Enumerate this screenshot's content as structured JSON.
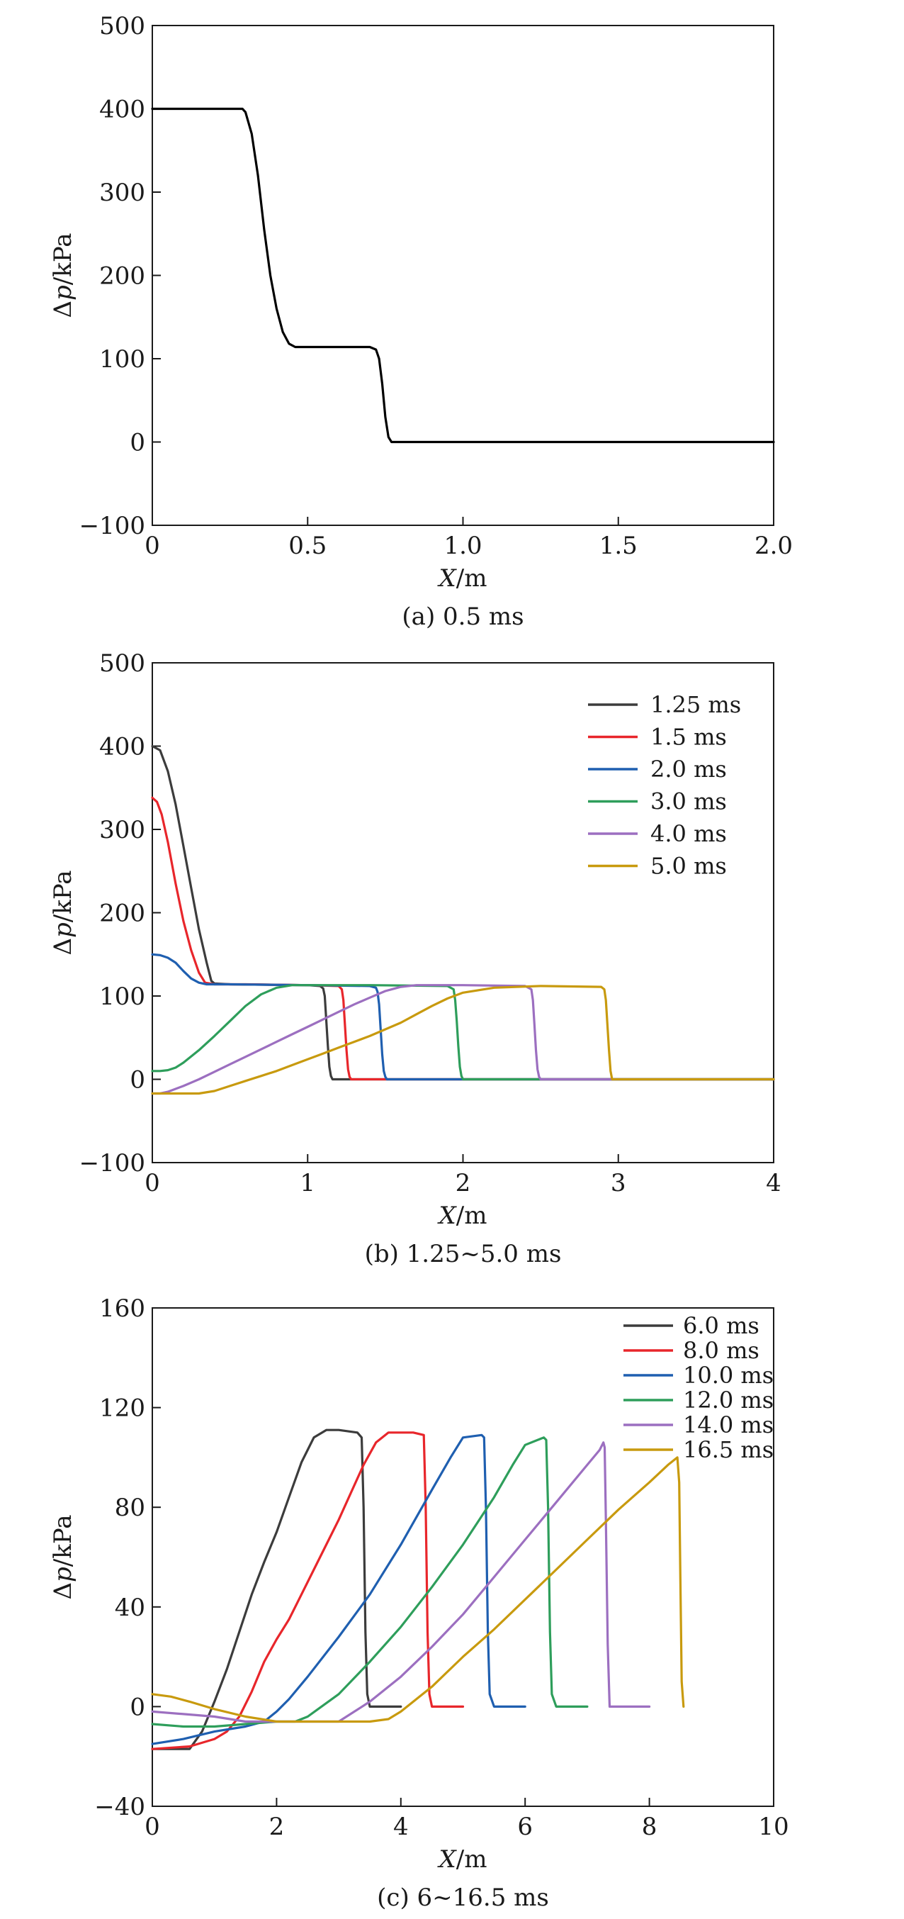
{
  "chart_data": [
    {
      "type": "line",
      "caption": "(a) 0.5 ms",
      "xlabel_italic": "X",
      "xlabel_unit": "/m",
      "ylabel_delta": "Δ",
      "ylabel_italic": "p",
      "ylabel_unit": "/kPa",
      "xlim": [
        0,
        2.0
      ],
      "ylim": [
        -100,
        500
      ],
      "xticks": [
        0,
        0.5,
        1.0,
        1.5,
        2.0
      ],
      "xtick_labels": [
        "0",
        "0.5",
        "1.0",
        "1.5",
        "2.0"
      ],
      "yticks": [
        -100,
        0,
        100,
        200,
        300,
        400,
        500
      ],
      "ytick_labels": [
        "−100",
        "0",
        "100",
        "200",
        "300",
        "400",
        "500"
      ],
      "legend": null,
      "series": [
        {
          "color": "#000000",
          "x": [
            0,
            0.29,
            0.3,
            0.32,
            0.34,
            0.36,
            0.38,
            0.4,
            0.42,
            0.44,
            0.46,
            0.48,
            0.6,
            0.7,
            0.72,
            0.73,
            0.74,
            0.75,
            0.76,
            0.77,
            2.0
          ],
          "y": [
            400,
            400,
            396,
            370,
            320,
            255,
            200,
            160,
            132,
            118,
            114,
            114,
            114,
            114,
            111,
            100,
            70,
            30,
            6,
            0,
            0
          ]
        }
      ]
    },
    {
      "type": "line",
      "caption": "(b) 1.25~5.0 ms",
      "xlabel_italic": "X",
      "xlabel_unit": "/m",
      "ylabel_delta": "Δ",
      "ylabel_italic": "p",
      "ylabel_unit": "/kPa",
      "xlim": [
        0,
        4
      ],
      "ylim": [
        -100,
        500
      ],
      "xticks": [
        0,
        1,
        2,
        3,
        4
      ],
      "xtick_labels": [
        "0",
        "1",
        "2",
        "3",
        "4"
      ],
      "yticks": [
        -100,
        0,
        100,
        200,
        300,
        400,
        500
      ],
      "ytick_labels": [
        "−100",
        "0",
        "100",
        "200",
        "300",
        "400",
        "500"
      ],
      "legend": "top-right",
      "series": [
        {
          "name": "1.25 ms",
          "color": "#3c3c3c",
          "x": [
            0,
            0.05,
            0.1,
            0.15,
            0.2,
            0.25,
            0.3,
            0.35,
            0.38,
            0.4,
            0.5,
            1.0,
            1.08,
            1.1,
            1.11,
            1.12,
            1.13,
            1.14,
            1.15,
            1.16,
            4.0
          ],
          "y": [
            400,
            395,
            370,
            330,
            280,
            230,
            180,
            140,
            118,
            115,
            114,
            113,
            112,
            109,
            100,
            70,
            40,
            15,
            4,
            0,
            0
          ]
        },
        {
          "name": "1.5 ms",
          "color": "#e8262b",
          "x": [
            0,
            0.03,
            0.06,
            0.1,
            0.15,
            0.2,
            0.25,
            0.3,
            0.34,
            0.4,
            0.6,
            1.0,
            1.2,
            1.22,
            1.23,
            1.24,
            1.25,
            1.26,
            1.27,
            1.28,
            4.0
          ],
          "y": [
            338,
            333,
            318,
            285,
            235,
            190,
            155,
            128,
            116,
            114,
            114,
            113,
            112,
            108,
            95,
            65,
            35,
            12,
            3,
            0,
            0
          ]
        },
        {
          "name": "2.0 ms",
          "color": "#1f5fb0",
          "x": [
            0,
            0.05,
            0.1,
            0.15,
            0.2,
            0.25,
            0.3,
            0.35,
            0.5,
            1.0,
            1.4,
            1.44,
            1.45,
            1.46,
            1.47,
            1.48,
            1.49,
            1.5,
            1.51,
            4.0
          ],
          "y": [
            150,
            149,
            146,
            140,
            130,
            121,
            116,
            114,
            114,
            113,
            112,
            110,
            105,
            90,
            60,
            30,
            10,
            3,
            0,
            0
          ]
        },
        {
          "name": "3.0 ms",
          "color": "#2e9e5b",
          "x": [
            0,
            0.05,
            0.1,
            0.15,
            0.2,
            0.3,
            0.4,
            0.5,
            0.6,
            0.7,
            0.8,
            0.9,
            1.0,
            1.4,
            1.9,
            1.94,
            1.95,
            1.96,
            1.97,
            1.98,
            1.99,
            2.0,
            4.0
          ],
          "y": [
            10,
            10,
            11,
            14,
            20,
            35,
            52,
            70,
            88,
            102,
            110,
            113,
            113,
            113,
            112,
            108,
            95,
            70,
            40,
            15,
            4,
            0,
            0
          ]
        },
        {
          "name": "4.0 ms",
          "color": "#9c6fc0",
          "x": [
            0,
            0.05,
            0.1,
            0.2,
            0.3,
            0.4,
            0.5,
            0.6,
            0.7,
            0.8,
            0.9,
            1.0,
            1.1,
            1.2,
            1.3,
            1.4,
            1.5,
            1.6,
            1.7,
            2.0,
            2.4,
            2.44,
            2.45,
            2.46,
            2.47,
            2.48,
            2.49,
            2.5,
            4.0
          ],
          "y": [
            -17,
            -17,
            -15,
            -8,
            0,
            9,
            18,
            27,
            36,
            45,
            54,
            63,
            72,
            81,
            90,
            98,
            106,
            111,
            113,
            113,
            112,
            108,
            95,
            65,
            35,
            12,
            3,
            0,
            0
          ]
        },
        {
          "name": "5.0 ms",
          "color": "#c89a0e",
          "x": [
            0,
            0.3,
            0.4,
            0.5,
            0.6,
            0.7,
            0.8,
            0.9,
            1.0,
            1.1,
            1.2,
            1.3,
            1.4,
            1.5,
            1.6,
            1.7,
            1.8,
            1.9,
            2.0,
            2.2,
            2.5,
            2.89,
            2.91,
            2.92,
            2.93,
            2.94,
            2.95,
            2.96,
            4.0
          ],
          "y": [
            -17,
            -17,
            -14,
            -8,
            -2,
            4,
            10,
            17,
            24,
            31,
            38,
            45,
            52,
            60,
            68,
            78,
            88,
            97,
            104,
            110,
            112,
            111,
            108,
            95,
            65,
            35,
            10,
            0,
            0
          ]
        }
      ]
    },
    {
      "type": "line",
      "caption": "(c) 6~16.5 ms",
      "xlabel_italic": "X",
      "xlabel_unit": "/m",
      "ylabel_delta": "Δ",
      "ylabel_italic": "p",
      "ylabel_unit": "/kPa",
      "xlim": [
        0,
        10
      ],
      "ylim": [
        -40,
        160
      ],
      "xticks": [
        0,
        2,
        4,
        6,
        8,
        10
      ],
      "xtick_labels": [
        "0",
        "2",
        "4",
        "6",
        "8",
        "10"
      ],
      "yticks": [
        -40,
        0,
        40,
        80,
        120,
        160
      ],
      "ytick_labels": [
        "−40",
        "0",
        "40",
        "80",
        "120",
        "160"
      ],
      "legend": "top-right",
      "series": [
        {
          "name": "6.0 ms",
          "color": "#3c3c3c",
          "x": [
            0,
            0.6,
            0.8,
            1.0,
            1.2,
            1.4,
            1.6,
            1.8,
            2.0,
            2.2,
            2.4,
            2.6,
            2.8,
            3.0,
            3.3,
            3.37,
            3.4,
            3.43,
            3.46,
            3.5,
            4.0
          ],
          "y": [
            -17,
            -17,
            -10,
            2,
            15,
            30,
            45,
            58,
            70,
            84,
            98,
            108,
            111,
            111,
            110,
            108,
            80,
            30,
            5,
            0,
            0
          ]
        },
        {
          "name": "8.0 ms",
          "color": "#e8262b",
          "x": [
            0,
            0.6,
            1.0,
            1.2,
            1.4,
            1.6,
            1.8,
            2.0,
            2.2,
            2.4,
            2.6,
            2.8,
            3.0,
            3.2,
            3.4,
            3.6,
            3.8,
            4.0,
            4.2,
            4.37,
            4.4,
            4.43,
            4.46,
            4.5,
            5.0
          ],
          "y": [
            -17,
            -16,
            -13,
            -10,
            -4,
            6,
            18,
            27,
            35,
            45,
            55,
            65,
            75,
            86,
            97,
            106,
            110,
            110,
            110,
            109,
            80,
            30,
            5,
            0,
            0
          ]
        },
        {
          "name": "10.0 ms",
          "color": "#1f5fb0",
          "x": [
            0,
            0.5,
            1.0,
            1.5,
            1.8,
            2.0,
            2.2,
            2.5,
            3.0,
            3.5,
            4.0,
            4.5,
            4.8,
            5.0,
            5.3,
            5.34,
            5.37,
            5.4,
            5.43,
            5.5,
            6.0
          ],
          "y": [
            -15,
            -13,
            -10,
            -8,
            -6,
            -2,
            3,
            12,
            28,
            45,
            65,
            87,
            100,
            108,
            109,
            108,
            80,
            30,
            5,
            0,
            0
          ]
        },
        {
          "name": "12.0 ms",
          "color": "#2e9e5b",
          "x": [
            0,
            0.5,
            1.0,
            1.5,
            2.0,
            2.3,
            2.5,
            3.0,
            3.5,
            4.0,
            4.5,
            5.0,
            5.5,
            5.8,
            6.0,
            6.3,
            6.34,
            6.37,
            6.4,
            6.43,
            6.5,
            7.0
          ],
          "y": [
            -7,
            -8,
            -8,
            -7,
            -6,
            -6,
            -4,
            5,
            18,
            32,
            48,
            65,
            84,
            97,
            105,
            108,
            107,
            80,
            30,
            5,
            0,
            0
          ]
        },
        {
          "name": "14.0 ms",
          "color": "#9c6fc0",
          "x": [
            0,
            0.5,
            1.0,
            1.5,
            2.0,
            2.5,
            3.0,
            3.5,
            4.0,
            4.5,
            5.0,
            5.5,
            6.0,
            6.5,
            7.0,
            7.2,
            7.26,
            7.28,
            7.3,
            7.33,
            7.36,
            7.5,
            8.0
          ],
          "y": [
            -2,
            -3,
            -4,
            -6,
            -6,
            -6,
            -6,
            2,
            12,
            24,
            37,
            52,
            67,
            82,
            97,
            103,
            106,
            104,
            75,
            25,
            0,
            0,
            0
          ]
        },
        {
          "name": "16.5 ms",
          "color": "#c89a0e",
          "x": [
            0,
            0.3,
            0.6,
            1.0,
            1.5,
            2.0,
            2.5,
            3.0,
            3.5,
            3.8,
            4.0,
            4.5,
            5.0,
            5.5,
            6.0,
            6.5,
            7.0,
            7.5,
            8.0,
            8.3,
            8.45,
            8.48,
            8.5,
            8.52,
            8.55
          ],
          "y": [
            5,
            4,
            2,
            -1,
            -4,
            -6,
            -6,
            -6,
            -6,
            -5,
            -2,
            8,
            20,
            31,
            43,
            55,
            67,
            79,
            90,
            97,
            100,
            90,
            50,
            10,
            0
          ]
        }
      ]
    }
  ]
}
